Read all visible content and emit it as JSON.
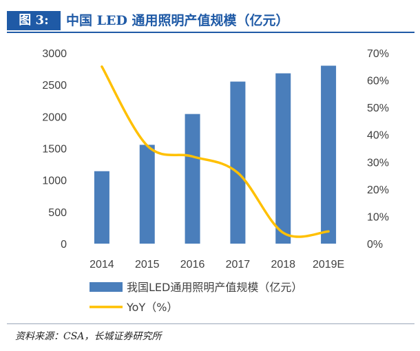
{
  "figure": {
    "label": "图 3:",
    "title": "中国 LED 通用照明产值规模（亿元）",
    "source": "资料来源：CSA，长城证券研究所"
  },
  "colors": {
    "accent": "#1f5aa6",
    "bar": "#4a7ebb",
    "line": "#ffc000"
  },
  "chart_data": {
    "type": "bar",
    "categories": [
      "2014",
      "2015",
      "2016",
      "2017",
      "2018",
      "2019E"
    ],
    "series": [
      {
        "name": "我国LED通用照明产值规模（亿元）",
        "type": "bar",
        "axis": "left",
        "values": [
          1140,
          1555,
          2040,
          2550,
          2680,
          2800
        ]
      },
      {
        "name": "YoY（%）",
        "type": "line",
        "axis": "right",
        "values": [
          65,
          36,
          32,
          26,
          4,
          4.5
        ]
      }
    ],
    "y_left": {
      "ylim": [
        0,
        3000
      ],
      "ticks": [
        "0",
        "500",
        "1000",
        "1500",
        "2000",
        "2500",
        "3000"
      ]
    },
    "y_right": {
      "ylim": [
        0,
        70
      ],
      "ticks": [
        "0%",
        "10%",
        "20%",
        "30%",
        "40%",
        "50%",
        "60%",
        "70%"
      ]
    },
    "grid": false,
    "legend": "bottom"
  }
}
